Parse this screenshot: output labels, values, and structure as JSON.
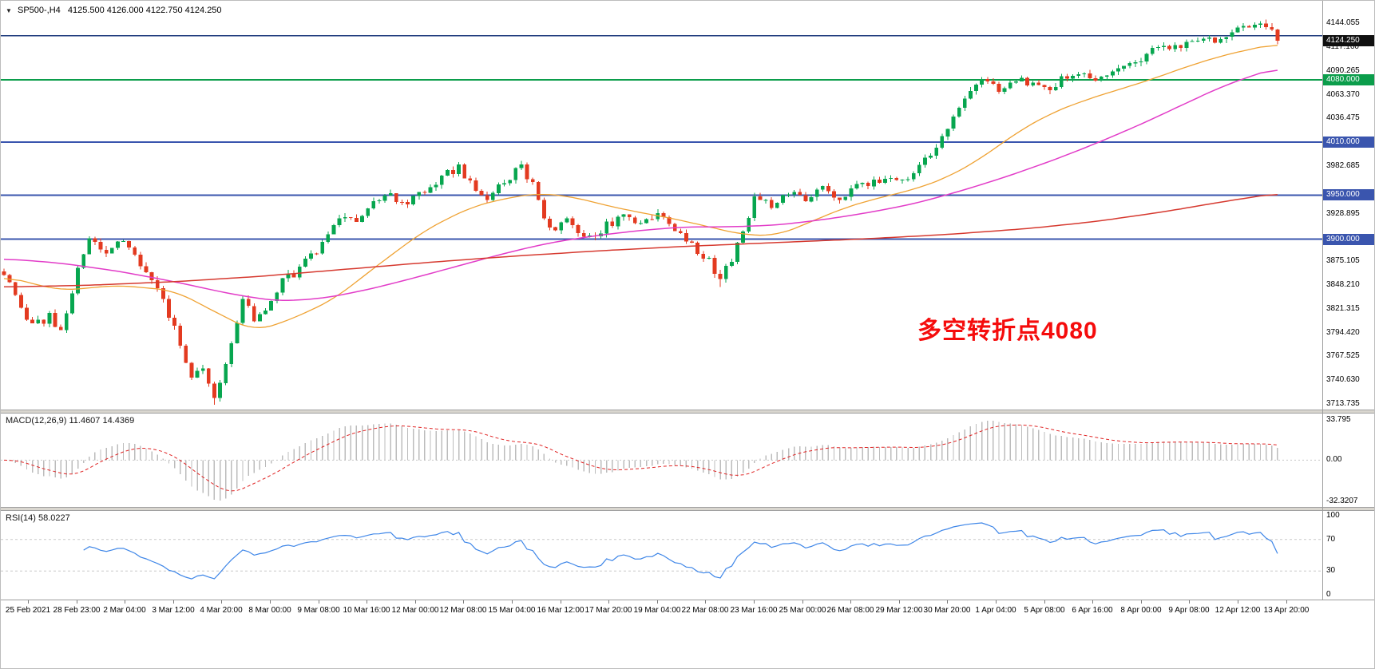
{
  "window": {
    "dropdown_icon": "▼",
    "symbol_info": "SP500-,H4",
    "ohlc": "4125.500 4126.000 4122.750 4124.250"
  },
  "annotation": {
    "text": "多空转折点4080",
    "color": "#f50c0c"
  },
  "colors": {
    "background": "#ffffff",
    "candle_up": "#07a64f",
    "candle_down": "#e33a20",
    "axis_text": "#000000",
    "current_price_box": "#101010"
  },
  "chart_data": [
    {
      "type": "candlestick",
      "symbol": "SP500-",
      "timeframe": "H4",
      "ohlc_current": {
        "open": 4125.5,
        "high": 4126.0,
        "low": 4122.75,
        "close": 4124.25
      },
      "current_price": 4124.25,
      "y_axis": {
        "min": 3707.5,
        "max": 4169.5,
        "tick_start": 3713.735,
        "tick_step": 26.895,
        "tick_count": 17,
        "hidden_ticks": [
          3902.0,
          3955.79,
          4009.58
        ]
      },
      "x_labels": [
        "25 Feb 2021",
        "28 Feb 23:00",
        "2 Mar 04:00",
        "3 Mar 12:00",
        "4 Mar 20:00",
        "8 Mar 00:00",
        "9 Mar 08:00",
        "10 Mar 16:00",
        "12 Mar 00:00",
        "12 Mar 08:00",
        "15 Mar 04:00",
        "16 Mar 12:00",
        "17 Mar 20:00",
        "19 Mar 04:00",
        "22 Mar 08:00",
        "23 Mar 16:00",
        "25 Mar 00:00",
        "26 Mar 08:00",
        "29 Mar 12:00",
        "30 Mar 20:00",
        "1 Apr 04:00",
        "5 Apr 08:00",
        "6 Apr 16:00",
        "8 Apr 00:00",
        "9 Apr 08:00",
        "12 Apr 12:00",
        "13 Apr 20:00"
      ],
      "horizontal_lines": [
        {
          "price": 4130.0,
          "color": "#1d3a7c",
          "width": 1.6,
          "box": false
        },
        {
          "price": 4080.0,
          "color": "#0b9d4b",
          "width": 2,
          "box": true
        },
        {
          "price": 4010.0,
          "color": "#3a55ae",
          "width": 2,
          "box": true
        },
        {
          "price": 3950.0,
          "color": "#3a55ae",
          "width": 2,
          "box": true
        },
        {
          "price": 3900.0,
          "color": "#3a55ae",
          "width": 2,
          "box": true
        }
      ],
      "candles": {
        "count": 225,
        "seed": 20210413,
        "noise": 5,
        "wick": 4.5,
        "anchors": [
          [
            0,
            3862
          ],
          [
            2,
            3838
          ],
          [
            5,
            3800
          ],
          [
            8,
            3814
          ],
          [
            10,
            3796
          ],
          [
            13,
            3866
          ],
          [
            15,
            3898
          ],
          [
            18,
            3880
          ],
          [
            21,
            3899
          ],
          [
            24,
            3868
          ],
          [
            27,
            3846
          ],
          [
            30,
            3798
          ],
          [
            33,
            3744
          ],
          [
            35,
            3756
          ],
          [
            37,
            3720
          ],
          [
            39,
            3762
          ],
          [
            42,
            3830
          ],
          [
            44,
            3812
          ],
          [
            46,
            3822
          ],
          [
            49,
            3852
          ],
          [
            52,
            3866
          ],
          [
            55,
            3888
          ],
          [
            59,
            3926
          ],
          [
            62,
            3918
          ],
          [
            65,
            3944
          ],
          [
            68,
            3950
          ],
          [
            71,
            3940
          ],
          [
            74,
            3956
          ],
          [
            77,
            3970
          ],
          [
            80,
            3980
          ],
          [
            83,
            3956
          ],
          [
            85,
            3944
          ],
          [
            88,
            3966
          ],
          [
            91,
            3982
          ],
          [
            93,
            3960
          ],
          [
            95,
            3922
          ],
          [
            97,
            3912
          ],
          [
            99,
            3920
          ],
          [
            101,
            3908
          ],
          [
            103,
            3900
          ],
          [
            106,
            3916
          ],
          [
            109,
            3926
          ],
          [
            112,
            3918
          ],
          [
            115,
            3928
          ],
          [
            118,
            3908
          ],
          [
            121,
            3892
          ],
          [
            124,
            3874
          ],
          [
            126,
            3852
          ],
          [
            129,
            3892
          ],
          [
            132,
            3946
          ],
          [
            135,
            3940
          ],
          [
            138,
            3954
          ],
          [
            141,
            3947
          ],
          [
            144,
            3960
          ],
          [
            147,
            3944
          ],
          [
            150,
            3958
          ],
          [
            153,
            3966
          ],
          [
            156,
            3972
          ],
          [
            159,
            3970
          ],
          [
            162,
            3988
          ],
          [
            165,
            4012
          ],
          [
            168,
            4046
          ],
          [
            170,
            4068
          ],
          [
            172,
            4078
          ],
          [
            175,
            4071
          ],
          [
            178,
            4082
          ],
          [
            181,
            4075
          ],
          [
            184,
            4066
          ],
          [
            186,
            4080
          ],
          [
            189,
            4085
          ],
          [
            192,
            4078
          ],
          [
            195,
            4089
          ],
          [
            198,
            4096
          ],
          [
            201,
            4108
          ],
          [
            204,
            4120
          ],
          [
            207,
            4115
          ],
          [
            210,
            4128
          ],
          [
            213,
            4123
          ],
          [
            216,
            4136
          ],
          [
            219,
            4141
          ],
          [
            221,
            4143
          ],
          [
            223,
            4136
          ],
          [
            224,
            4124.25
          ]
        ],
        "low_overrides": [
          [
            37,
            3713
          ],
          [
            126,
            3846
          ]
        ],
        "high_overrides": [
          [
            80,
            3983
          ],
          [
            91,
            3985
          ],
          [
            220,
            4144.8
          ]
        ]
      },
      "moving_averages": [
        {
          "name": "fast-ma",
          "color": "#efa233",
          "width": 1.3,
          "points": [
            [
              0,
              3858
            ],
            [
              10,
              3842
            ],
            [
              20,
              3848
            ],
            [
              30,
              3842
            ],
            [
              38,
              3815
            ],
            [
              44,
              3796
            ],
            [
              50,
              3808
            ],
            [
              58,
              3832
            ],
            [
              66,
              3872
            ],
            [
              74,
              3910
            ],
            [
              82,
              3936
            ],
            [
              88,
              3946
            ],
            [
              94,
              3952
            ],
            [
              100,
              3948
            ],
            [
              106,
              3938
            ],
            [
              112,
              3930
            ],
            [
              118,
              3923
            ],
            [
              124,
              3914
            ],
            [
              130,
              3905
            ],
            [
              136,
              3904
            ],
            [
              142,
              3920
            ],
            [
              148,
              3936
            ],
            [
              154,
              3947
            ],
            [
              160,
              3956
            ],
            [
              166,
              3970
            ],
            [
              172,
              3992
            ],
            [
              178,
              4020
            ],
            [
              184,
              4042
            ],
            [
              190,
              4057
            ],
            [
              196,
              4069
            ],
            [
              202,
              4081
            ],
            [
              208,
              4095
            ],
            [
              214,
              4107
            ],
            [
              220,
              4116
            ],
            [
              224,
              4121
            ]
          ]
        },
        {
          "name": "mid-ma",
          "color": "#e23cc8",
          "width": 1.5,
          "points": [
            [
              0,
              3878
            ],
            [
              10,
              3873
            ],
            [
              20,
              3864
            ],
            [
              30,
              3852
            ],
            [
              40,
              3838
            ],
            [
              48,
              3830
            ],
            [
              56,
              3833
            ],
            [
              64,
              3843
            ],
            [
              72,
              3856
            ],
            [
              80,
              3870
            ],
            [
              88,
              3884
            ],
            [
              96,
              3896
            ],
            [
              104,
              3904
            ],
            [
              112,
              3910
            ],
            [
              120,
              3914
            ],
            [
              128,
              3914
            ],
            [
              136,
              3916
            ],
            [
              144,
              3922
            ],
            [
              152,
              3930
            ],
            [
              160,
              3940
            ],
            [
              168,
              3954
            ],
            [
              176,
              3970
            ],
            [
              184,
              3988
            ],
            [
              192,
              4008
            ],
            [
              200,
              4030
            ],
            [
              208,
              4054
            ],
            [
              214,
              4072
            ],
            [
              220,
              4086
            ],
            [
              224,
              4094
            ]
          ]
        },
        {
          "name": "slow-ma",
          "color": "#d6392f",
          "width": 1.5,
          "points": [
            [
              0,
              3846
            ],
            [
              15,
              3848
            ],
            [
              30,
              3852
            ],
            [
              45,
              3858
            ],
            [
              60,
              3866
            ],
            [
              75,
              3874
            ],
            [
              90,
              3881
            ],
            [
              105,
              3887
            ],
            [
              120,
              3892
            ],
            [
              135,
              3896
            ],
            [
              150,
              3900
            ],
            [
              165,
              3905
            ],
            [
              180,
              3912
            ],
            [
              192,
              3920
            ],
            [
              204,
              3931
            ],
            [
              214,
              3942
            ],
            [
              224,
              3952
            ]
          ]
        }
      ]
    },
    {
      "type": "macd",
      "label": "MACD(12,26,9) 11.4607 14.4369",
      "params": {
        "fast": 12,
        "slow": 26,
        "signal": 9
      },
      "values": {
        "macd": 11.4607,
        "signal": 14.4369
      },
      "axis_labels": {
        "top": "33.795",
        "zero": "0.00",
        "bottom": "-32.3207"
      },
      "histogram_color": "#bcbcbc",
      "signal_color": "#e02424",
      "zero_line_color": "#c8c8c8"
    },
    {
      "type": "rsi",
      "label": "RSI(14) 58.0227",
      "period": 14,
      "value": 58.0227,
      "levels": [
        70,
        30
      ],
      "axis_values": [
        100,
        70,
        30,
        0
      ],
      "line_color": "#3e86e8",
      "level_line_color": "#c8c8c8"
    }
  ]
}
